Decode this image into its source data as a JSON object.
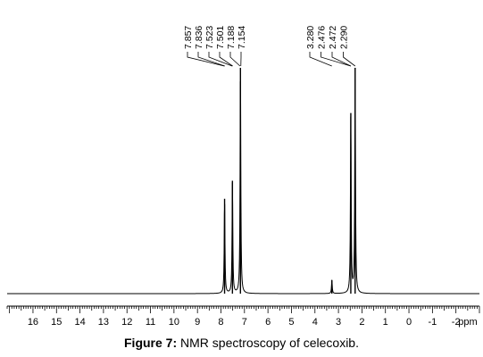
{
  "chart_data": {
    "type": "line",
    "title": "",
    "xlabel": "ppm",
    "ylabel": "",
    "x_reversed": true,
    "xlim": [
      17.1,
      -3.0
    ],
    "tick_labels": [
      "16",
      "15",
      "14",
      "13",
      "12",
      "11",
      "10",
      "9",
      "8",
      "7",
      "6",
      "5",
      "4",
      "3",
      "2",
      "1",
      "0",
      "-1",
      "-2"
    ],
    "tick_values": [
      16,
      15,
      14,
      13,
      12,
      11,
      10,
      9,
      8,
      7,
      6,
      5,
      4,
      3,
      2,
      1,
      0,
      -1,
      -2
    ],
    "peak_labels": [
      "7.857",
      "7.836",
      "7.523",
      "7.501",
      "7.188",
      "7.154",
      "3.280",
      "2.476",
      "2.472",
      "2.290"
    ],
    "peaks": [
      {
        "ppm": 7.846,
        "intensity": 0.42
      },
      {
        "ppm": 7.512,
        "intensity": 0.5
      },
      {
        "ppm": 7.171,
        "intensity": 1.0
      },
      {
        "ppm": 3.28,
        "intensity": 0.06
      },
      {
        "ppm": 2.474,
        "intensity": 0.8
      },
      {
        "ppm": 2.29,
        "intensity": 1.0
      }
    ],
    "grid": false
  },
  "caption": {
    "label": "Figure 7:",
    "text": " NMR spectroscopy of celecoxib."
  }
}
